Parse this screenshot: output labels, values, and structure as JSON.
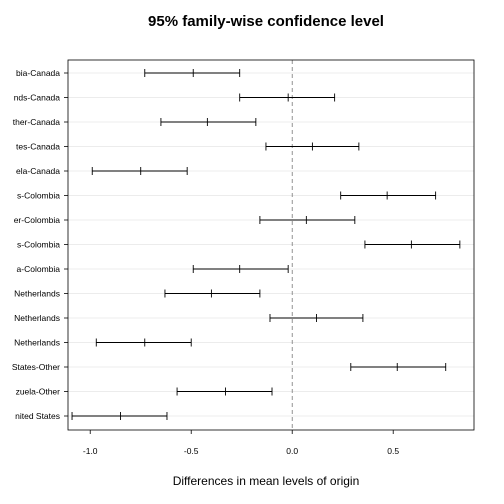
{
  "chart_data": {
    "type": "errorbar",
    "title": "95% family-wise confidence level",
    "xlabel": "Differences in mean levels of origin",
    "ylabel": "",
    "xlim": [
      -1.11,
      0.9
    ],
    "reference_line": 0,
    "xticks": [
      -1.0,
      -0.5,
      0.0,
      0.5
    ],
    "xtick_labels": [
      "-1.0",
      "-0.5",
      "0.0",
      "0.5"
    ],
    "grid": true,
    "comparisons": [
      {
        "label": "bia-Canada",
        "estimate": -0.49,
        "lower": -0.73,
        "upper": -0.26
      },
      {
        "label": "nds-Canada",
        "estimate": -0.02,
        "lower": -0.26,
        "upper": 0.21
      },
      {
        "label": "ther-Canada",
        "estimate": -0.42,
        "lower": -0.65,
        "upper": -0.18
      },
      {
        "label": "tes-Canada",
        "estimate": 0.1,
        "lower": -0.13,
        "upper": 0.33
      },
      {
        "label": "ela-Canada",
        "estimate": -0.75,
        "lower": -0.99,
        "upper": -0.52
      },
      {
        "label": "s-Colombia",
        "estimate": 0.47,
        "lower": 0.24,
        "upper": 0.71
      },
      {
        "label": "er-Colombia",
        "estimate": 0.07,
        "lower": -0.16,
        "upper": 0.31
      },
      {
        "label": "s-Colombia",
        "estimate": 0.59,
        "lower": 0.36,
        "upper": 0.83
      },
      {
        "label": "a-Colombia",
        "estimate": -0.26,
        "lower": -0.49,
        "upper": -0.02
      },
      {
        "label": "Netherlands",
        "estimate": -0.4,
        "lower": -0.63,
        "upper": -0.16
      },
      {
        "label": "Netherlands",
        "estimate": 0.12,
        "lower": -0.11,
        "upper": 0.35
      },
      {
        "label": "Netherlands",
        "estimate": -0.73,
        "lower": -0.97,
        "upper": -0.5
      },
      {
        "label": "States-Other",
        "estimate": 0.52,
        "lower": 0.29,
        "upper": 0.76
      },
      {
        "label": "zuela-Other",
        "estimate": -0.33,
        "lower": -0.57,
        "upper": -0.1
      },
      {
        "label": "nited States",
        "estimate": -0.85,
        "lower": -1.09,
        "upper": -0.62
      }
    ]
  }
}
